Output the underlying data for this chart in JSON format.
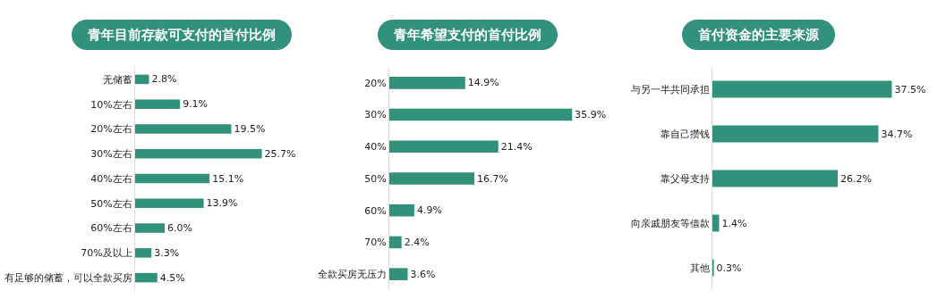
{
  "chart_data": [
    {
      "type": "bar",
      "orientation": "horizontal",
      "title": "青年目前存款可支付的首付比例",
      "categories": [
        "无储蓄",
        "10%左右",
        "20%左右",
        "30%左右",
        "40%左右",
        "50%左右",
        "60%左右",
        "70%及以上",
        "有足够的储蓄，可以全款买房"
      ],
      "values": [
        2.8,
        9.1,
        19.5,
        25.7,
        15.1,
        13.9,
        6.0,
        3.3,
        4.5
      ],
      "value_labels": [
        "2.8%",
        "9.1%",
        "19.5%",
        "25.7%",
        "15.1%",
        "13.9%",
        "6.0%",
        "3.3%",
        "4.5%"
      ],
      "color": "#31917a",
      "tick_labels": "y"
    },
    {
      "type": "bar",
      "orientation": "horizontal",
      "title": "青年希望支付的首付比例",
      "categories": [
        "20%",
        "30%",
        "40%",
        "50%",
        "60%",
        "70%",
        "全款买房无压力"
      ],
      "values": [
        14.9,
        35.9,
        21.4,
        16.7,
        4.9,
        2.4,
        3.6
      ],
      "value_labels": [
        "14.9%",
        "35.9%",
        "21.4%",
        "16.7%",
        "4.9%",
        "2.4%",
        "3.6%"
      ],
      "color": "#31917a",
      "tick_labels": "y"
    },
    {
      "type": "bar",
      "orientation": "horizontal",
      "title": "首付资金的主要来源",
      "categories": [
        "与另一半共同承担",
        "靠自己攒钱",
        "靠父母支持",
        "向亲戚朋友等借款",
        "其他"
      ],
      "values": [
        37.5,
        34.7,
        26.2,
        1.4,
        0.3
      ],
      "value_labels": [
        "37.5%",
        "34.7%",
        "26.2%",
        "1.4%",
        "0.3%"
      ],
      "color": "#31917a",
      "tick_labels": "y"
    }
  ]
}
